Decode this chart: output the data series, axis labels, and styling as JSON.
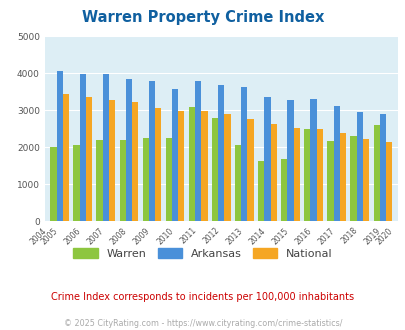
{
  "title": "Warren Property Crime Index",
  "title_color": "#1060a0",
  "years": [
    2004,
    2005,
    2006,
    2007,
    2008,
    2009,
    2010,
    2011,
    2012,
    2013,
    2014,
    2015,
    2016,
    2017,
    2018,
    2019,
    2020
  ],
  "warren": [
    0,
    2000,
    2050,
    2200,
    2200,
    2250,
    2250,
    3100,
    2800,
    2050,
    1620,
    1680,
    2480,
    2160,
    2300,
    2600,
    0
  ],
  "arkansas": [
    0,
    4060,
    3970,
    3970,
    3840,
    3780,
    3580,
    3790,
    3680,
    3620,
    3370,
    3280,
    3310,
    3110,
    2960,
    2900,
    0
  ],
  "national": [
    0,
    3450,
    3370,
    3280,
    3230,
    3060,
    2970,
    2970,
    2900,
    2760,
    2640,
    2510,
    2490,
    2380,
    2220,
    2140,
    0
  ],
  "warren_color": "#8dc63f",
  "arkansas_color": "#4a90d9",
  "national_color": "#f5a623",
  "bg_color": "#ddeef5",
  "grid_color": "#ffffff",
  "ylim": [
    0,
    5000
  ],
  "yticks": [
    0,
    1000,
    2000,
    3000,
    4000,
    5000
  ],
  "subtitle": "Crime Index corresponds to incidents per 100,000 inhabitants",
  "subtitle_color": "#cc0000",
  "footer": "© 2025 CityRating.com - https://www.cityrating.com/crime-statistics/",
  "footer_color": "#aaaaaa",
  "legend_labels": [
    "Warren",
    "Arkansas",
    "National"
  ],
  "bar_width": 0.27
}
